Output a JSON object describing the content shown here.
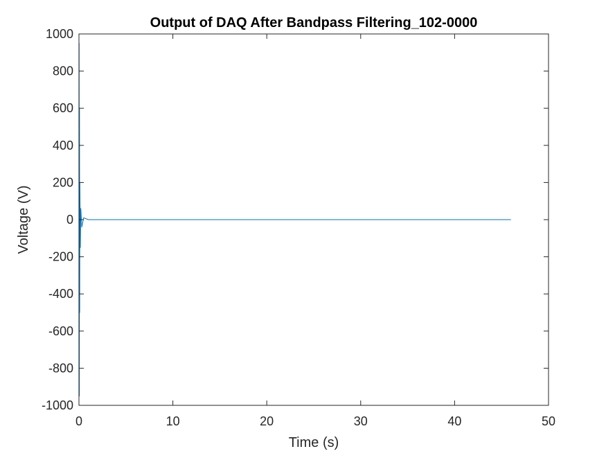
{
  "chart_data": {
    "type": "line",
    "title": "Output of DAQ After Bandpass Filtering_102-0000",
    "xlabel": "Time (s)",
    "ylabel": "Voltage (V)",
    "xlim": [
      0,
      50
    ],
    "ylim": [
      -1000,
      1000
    ],
    "xticks": [
      0,
      10,
      20,
      30,
      40,
      50
    ],
    "yticks": [
      -1000,
      -800,
      -600,
      -400,
      -200,
      0,
      200,
      400,
      600,
      800,
      1000
    ],
    "xtick_labels": [
      "0",
      "10",
      "20",
      "30",
      "40",
      "50"
    ],
    "ytick_labels": [
      "-1000",
      "-800",
      "-600",
      "-400",
      "-200",
      "0",
      "200",
      "400",
      "600",
      "800",
      "1000"
    ],
    "grid": false,
    "legend": "none",
    "series": [
      {
        "color": "#0072BD",
        "x": [
          0,
          0.02,
          0.04,
          0.06,
          0.08,
          0.1,
          0.15,
          0.2,
          0.3,
          0.5,
          1,
          5,
          10,
          15,
          20,
          25,
          30,
          35,
          40,
          45,
          46
        ],
        "y": [
          0,
          950,
          -950,
          600,
          -500,
          200,
          -150,
          60,
          -40,
          10,
          0,
          0,
          0,
          0,
          0,
          0,
          0,
          0,
          0,
          0,
          0
        ]
      }
    ]
  }
}
